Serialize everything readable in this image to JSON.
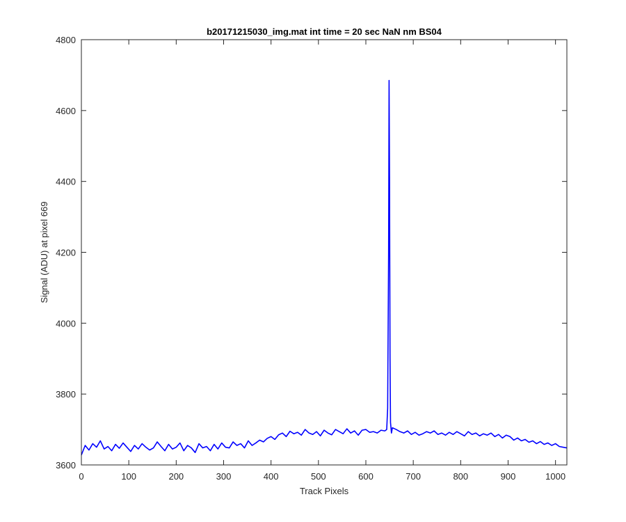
{
  "chart_data": {
    "type": "line",
    "title": "b20171215030_img.mat int time = 20 sec  NaN nm BS04",
    "xlabel": "Track Pixels",
    "ylabel": "Signal (ADU) at pixel 669",
    "xlim": [
      0,
      1024
    ],
    "ylim": [
      3600,
      4800
    ],
    "xticks": [
      0,
      100,
      200,
      300,
      400,
      500,
      600,
      700,
      800,
      900,
      1000
    ],
    "yticks": [
      3600,
      3800,
      4000,
      4200,
      4400,
      4600,
      4800
    ],
    "grid": false,
    "line_color": "#0000ff",
    "series": [
      {
        "x": [
          0,
          8,
          16,
          24,
          32,
          40,
          48,
          56,
          64,
          72,
          80,
          88,
          96,
          104,
          112,
          120,
          128,
          136,
          144,
          152,
          160,
          168,
          176,
          184,
          192,
          200,
          208,
          216,
          224,
          232,
          240,
          248,
          256,
          264,
          272,
          280,
          288,
          296,
          304,
          312,
          320,
          328,
          336,
          344,
          352,
          360,
          368,
          376,
          384,
          392,
          400,
          408,
          416,
          424,
          432,
          440,
          448,
          456,
          464,
          472,
          480,
          488,
          496,
          504,
          512,
          520,
          528,
          536,
          544,
          552,
          560,
          568,
          576,
          584,
          592,
          600,
          608,
          616,
          624,
          632,
          640,
          644,
          646,
          648,
          649,
          650,
          651,
          652,
          654,
          656,
          664,
          672,
          680,
          688,
          696,
          704,
          712,
          720,
          728,
          736,
          744,
          752,
          760,
          768,
          776,
          784,
          792,
          800,
          808,
          816,
          824,
          832,
          840,
          848,
          856,
          864,
          872,
          880,
          888,
          896,
          904,
          912,
          920,
          928,
          936,
          944,
          952,
          960,
          968,
          976,
          984,
          992,
          1000,
          1008,
          1016,
          1024
        ],
        "values": [
          3628,
          3655,
          3642,
          3660,
          3650,
          3668,
          3645,
          3652,
          3640,
          3658,
          3647,
          3662,
          3650,
          3638,
          3655,
          3645,
          3660,
          3650,
          3642,
          3648,
          3665,
          3652,
          3640,
          3658,
          3645,
          3650,
          3662,
          3640,
          3655,
          3648,
          3635,
          3660,
          3648,
          3652,
          3640,
          3658,
          3645,
          3662,
          3650,
          3648,
          3665,
          3655,
          3660,
          3648,
          3668,
          3655,
          3662,
          3670,
          3665,
          3675,
          3680,
          3672,
          3685,
          3690,
          3680,
          3695,
          3688,
          3692,
          3684,
          3700,
          3690,
          3686,
          3694,
          3682,
          3698,
          3690,
          3685,
          3700,
          3694,
          3688,
          3702,
          3690,
          3696,
          3684,
          3698,
          3700,
          3692,
          3694,
          3690,
          3698,
          3696,
          3700,
          3760,
          4200,
          4685,
          4400,
          3900,
          3720,
          3690,
          3705,
          3700,
          3694,
          3690,
          3696,
          3686,
          3692,
          3684,
          3688,
          3694,
          3690,
          3696,
          3686,
          3690,
          3684,
          3692,
          3686,
          3694,
          3688,
          3682,
          3694,
          3686,
          3690,
          3682,
          3688,
          3684,
          3690,
          3680,
          3686,
          3676,
          3684,
          3680,
          3670,
          3676,
          3668,
          3672,
          3664,
          3668,
          3660,
          3666,
          3658,
          3662,
          3655,
          3660,
          3652,
          3650,
          3648
        ]
      }
    ]
  }
}
